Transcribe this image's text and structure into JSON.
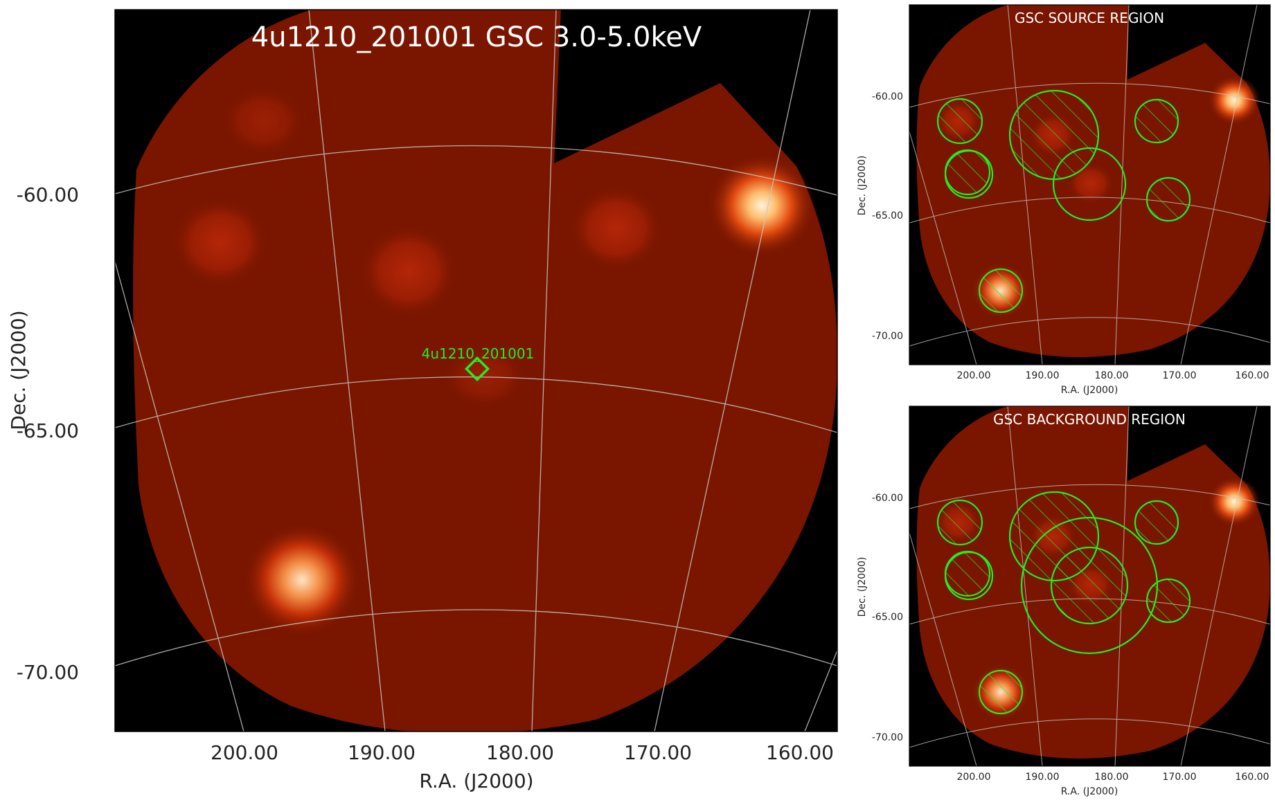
{
  "main_panel": {
    "title": "4u1210_201001 GSC 3.0-5.0keV",
    "source_label": "4u1210_201001",
    "xlabel": "R.A. (J2000)",
    "ylabel": "Dec. (J2000)",
    "ra_ticks": [
      "200.00",
      "190.00",
      "180.00",
      "170.00",
      "160.00"
    ],
    "dec_ticks": [
      "-60.00",
      "-65.00",
      "-70.00"
    ]
  },
  "source_panel": {
    "title": "GSC SOURCE REGION",
    "xlabel": "R.A. (J2000)",
    "ylabel": "Dec. (J2000)",
    "ra_ticks": [
      "200.00",
      "190.00",
      "180.00",
      "170.00",
      "160.00"
    ],
    "dec_ticks": [
      "-60.00",
      "-65.00",
      "-70.00"
    ]
  },
  "background_panel": {
    "title": "GSC BACKGROUND REGION",
    "xlabel": "R.A. (J2000)",
    "ylabel": "Dec. (J2000)",
    "ra_ticks": [
      "200.00",
      "190.00",
      "180.00",
      "170.00",
      "160.00"
    ],
    "dec_ticks": [
      "-60.00",
      "-65.00",
      "-70.00"
    ]
  },
  "colors": {
    "image_background": "#000000",
    "field_color": "#7a1600",
    "region_color": "#22ee22",
    "grid_color": "#bbbbbb",
    "bright_source": "#ffe8c0"
  }
}
